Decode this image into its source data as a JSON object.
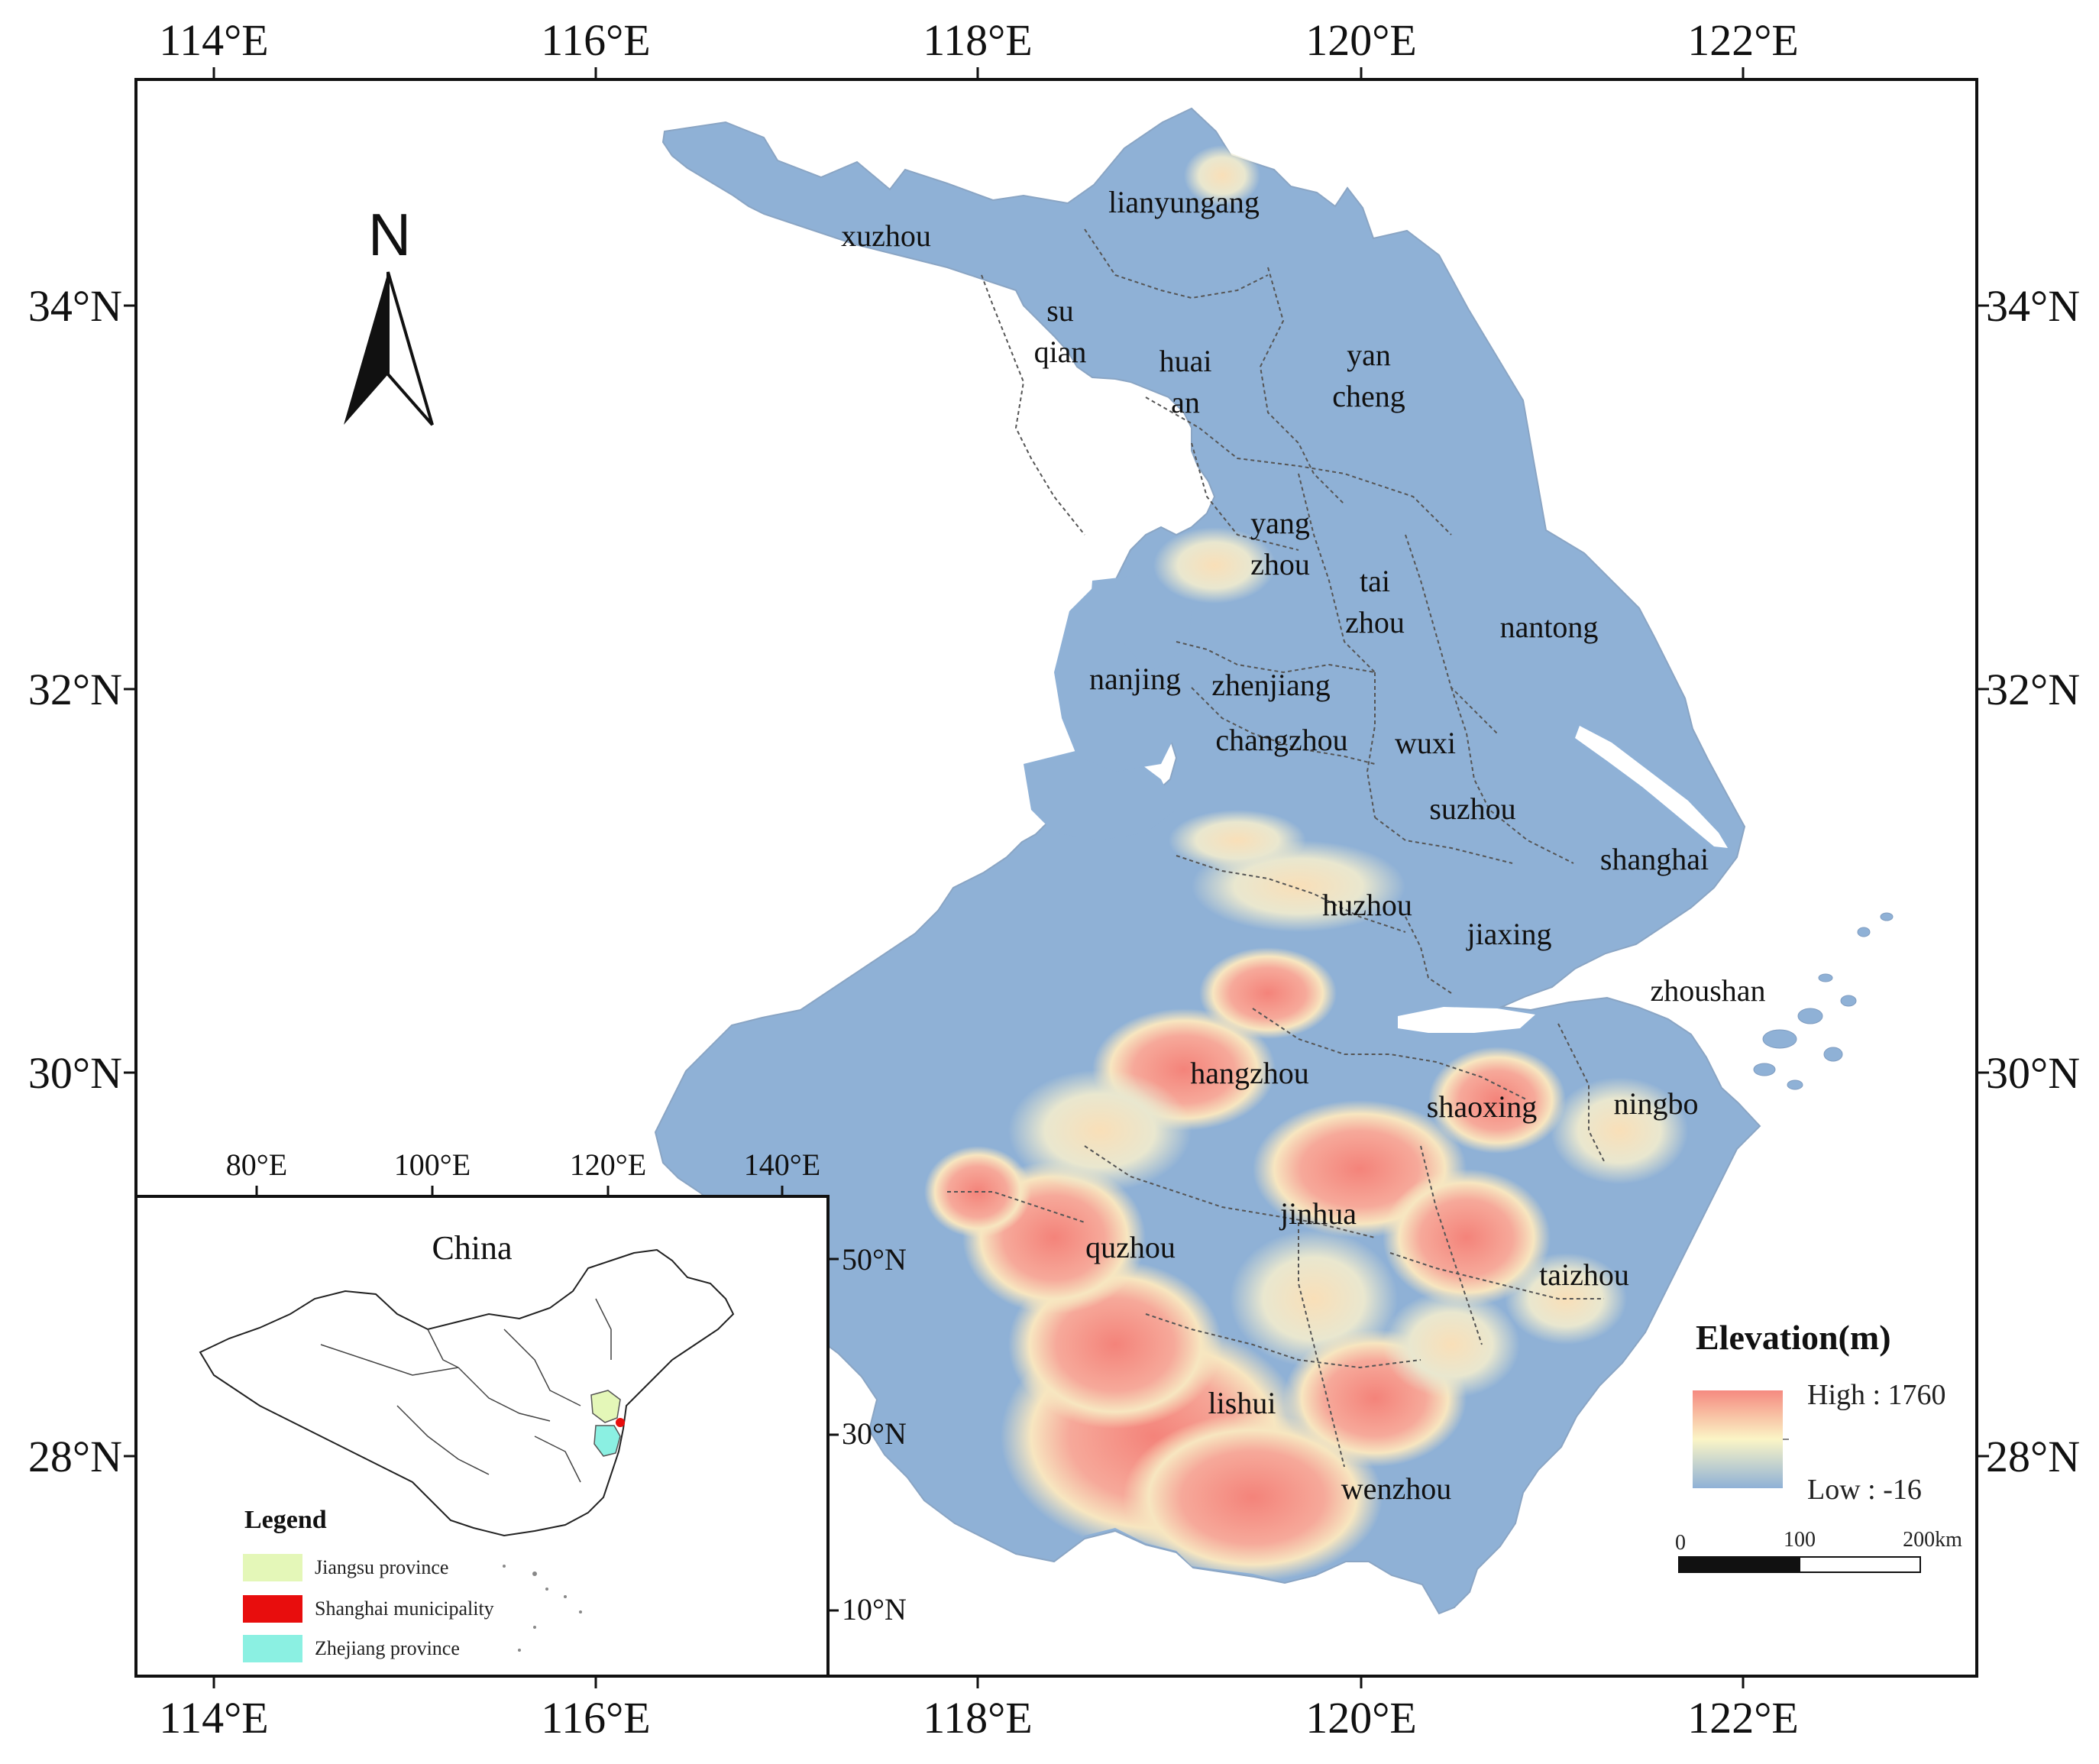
{
  "main_map": {
    "lon_labels": [
      "114°E",
      "116°E",
      "118°E",
      "120°E",
      "122°E"
    ],
    "lat_labels": [
      "34°N",
      "32°N",
      "30°N",
      "28°N"
    ],
    "north_label": "N",
    "cities": [
      {
        "id": "xuzhou",
        "label": "xuzhou"
      },
      {
        "id": "lianyungang",
        "label": "lianyungang"
      },
      {
        "id": "suqian",
        "lines": [
          "su",
          "qian"
        ]
      },
      {
        "id": "huaian",
        "lines": [
          "huai",
          "an"
        ]
      },
      {
        "id": "yancheng",
        "lines": [
          "yan",
          "cheng"
        ]
      },
      {
        "id": "yangzhou",
        "lines": [
          "yang",
          "zhou"
        ]
      },
      {
        "id": "taizhou-js",
        "lines": [
          "tai",
          "zhou"
        ]
      },
      {
        "id": "nantong",
        "label": "nantong"
      },
      {
        "id": "nanjing",
        "label": "nanjing"
      },
      {
        "id": "zhenjiang",
        "label": "zhenjiang"
      },
      {
        "id": "changzhou",
        "label": "changzhou"
      },
      {
        "id": "wuxi",
        "label": "wuxi"
      },
      {
        "id": "suzhou",
        "label": "suzhou"
      },
      {
        "id": "shanghai",
        "label": "shanghai"
      },
      {
        "id": "huzhou",
        "label": "huzhou"
      },
      {
        "id": "jiaxing",
        "label": "jiaxing"
      },
      {
        "id": "zhoushan",
        "label": "zhoushan"
      },
      {
        "id": "hangzhou",
        "label": "hangzhou"
      },
      {
        "id": "shaoxing",
        "label": "shaoxing"
      },
      {
        "id": "ningbo",
        "label": "ningbo"
      },
      {
        "id": "jinhua",
        "label": "jinhua"
      },
      {
        "id": "quzhou",
        "label": "quzhou"
      },
      {
        "id": "taizhou-zj",
        "label": "taizhou"
      },
      {
        "id": "lishui",
        "label": "lishui"
      },
      {
        "id": "wenzhou",
        "label": "wenzhou"
      }
    ]
  },
  "elevation_legend": {
    "title": "Elevation(m)",
    "high_label": "High : 1760",
    "low_label": "Low : -16",
    "high_value": 1760,
    "low_value": -16,
    "colors": {
      "high": "#f58a80",
      "mid": "#fbf5c6",
      "low": "#8fb1d6"
    }
  },
  "scale_bar": {
    "labels": [
      "0",
      "100",
      "200km"
    ]
  },
  "inset": {
    "title": "China",
    "lon_labels": [
      "80°E",
      "100°E",
      "120°E",
      "140°E"
    ],
    "lat_labels": [
      "50°N",
      "30°N",
      "10°N"
    ],
    "legend_title": "Legend",
    "legend_items": [
      {
        "label": "Jiangsu province",
        "color": "#e4f7b8"
      },
      {
        "label": "Shanghai municipality",
        "color": "#e80d0d"
      },
      {
        "label": "Zhejiang province",
        "color": "#8bf0e2"
      }
    ]
  },
  "colors": {
    "low_elevation": "#8fb1d6",
    "frame": "#111111"
  }
}
